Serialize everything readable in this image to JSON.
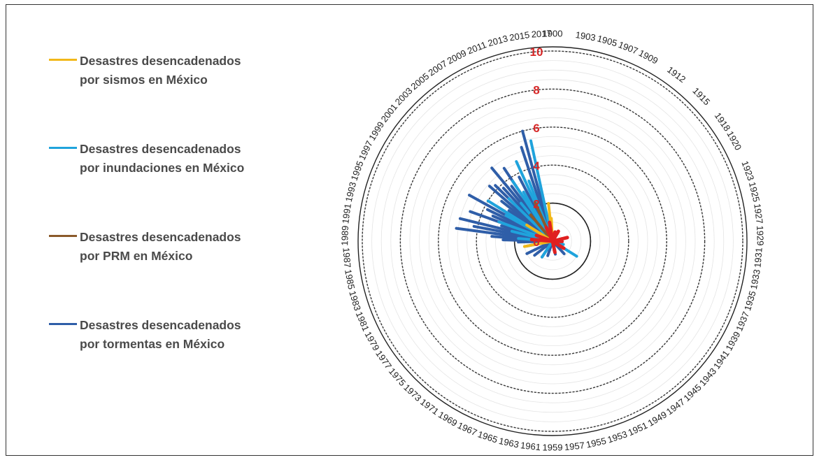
{
  "colors": {
    "sismos": "#f2b81a",
    "inundaciones": "#1fa3dc",
    "prm": "#8b5a2b",
    "tormentas": "#2f5ea8",
    "center": "#e02020",
    "radial_label": "#d62828"
  },
  "chart_data": {
    "type": "radial-bar",
    "title": "",
    "legend_placement": "left",
    "r_ticks": [
      0,
      2,
      4,
      6,
      8,
      10
    ],
    "r_range": [
      0,
      10
    ],
    "dashed_major_circles": [
      2,
      4,
      6,
      8,
      10
    ],
    "years": [
      "1900",
      "1903",
      "1905",
      "1907",
      "1909",
      "1912",
      "1915",
      "1918",
      "1920",
      "1923",
      "1925",
      "1927",
      "1929",
      "1931",
      "1933",
      "1935",
      "1937",
      "1939",
      "1941",
      "1943",
      "1945",
      "1947",
      "1949",
      "1951",
      "1953",
      "1955",
      "1957",
      "1959",
      "1961",
      "1963",
      "1965",
      "1967",
      "1969",
      "1971",
      "1973",
      "1975",
      "1977",
      "1979",
      "1981",
      "1983",
      "1985",
      "1987",
      "1989",
      "1991",
      "1993",
      "1995",
      "1997",
      "1999",
      "2001",
      "2003",
      "2005",
      "2007",
      "2009",
      "2011",
      "2013",
      "2015",
      "2017"
    ],
    "series": [
      {
        "name": "Desastres desencadenados por sismos en México",
        "color_key": "sismos",
        "points": [
          [
            "2017",
            1.2
          ],
          [
            "2016",
            2.0
          ],
          [
            "1999",
            1.6
          ],
          [
            "1985",
            1.5
          ],
          [
            "1900",
            0.4
          ]
        ]
      },
      {
        "name": "Desastres desencadenados por inundaciones en México",
        "color_key": "inundaciones",
        "points": [
          [
            "2014",
            5.4
          ],
          [
            "2011",
            3.4
          ],
          [
            "2010",
            4.6
          ],
          [
            "2008",
            3.0
          ],
          [
            "2007",
            3.8
          ],
          [
            "2005",
            2.6
          ],
          [
            "2003",
            3.2
          ],
          [
            "1999",
            4.0
          ],
          [
            "1998",
            2.8
          ],
          [
            "1995",
            3.0
          ],
          [
            "1993",
            2.2
          ],
          [
            "1990",
            1.8
          ],
          [
            "1970",
            1.0
          ],
          [
            "1940",
            1.5
          ],
          [
            "1935",
            0.6
          ]
        ]
      },
      {
        "name": "Desastres desencadenados por PRM en México",
        "color_key": "prm",
        "points": [
          [
            "2010",
            2.2
          ],
          [
            "2005",
            1.8
          ],
          [
            "1999",
            1.2
          ]
        ]
      },
      {
        "name": "Desastres desencadenados por tormentas en México",
        "color_key": "tormentas",
        "points": [
          [
            "2013",
            6.0
          ],
          [
            "2012",
            5.2
          ],
          [
            "2009",
            3.8
          ],
          [
            "2007",
            4.6
          ],
          [
            "2006",
            3.6
          ],
          [
            "2005",
            5.0
          ],
          [
            "2004",
            3.8
          ],
          [
            "2003",
            4.2
          ],
          [
            "2002",
            4.4
          ],
          [
            "2001",
            3.4
          ],
          [
            "2000",
            2.8
          ],
          [
            "1999",
            3.4
          ],
          [
            "1998",
            5.0
          ],
          [
            "1997",
            3.8
          ],
          [
            "1996",
            3.4
          ],
          [
            "1995",
            4.6
          ],
          [
            "1994",
            2.8
          ],
          [
            "1993",
            5.0
          ],
          [
            "1992",
            4.2
          ],
          [
            "1991",
            5.1
          ],
          [
            "1990",
            3.2
          ],
          [
            "1989",
            2.6
          ],
          [
            "1988",
            1.8
          ],
          [
            "1985",
            1.4
          ],
          [
            "1980",
            1.5
          ],
          [
            "1976",
            1.2
          ],
          [
            "1970",
            1.0
          ],
          [
            "1965",
            0.8
          ],
          [
            "1955",
            0.7
          ],
          [
            "1945",
            0.9
          ],
          [
            "1935",
            0.5
          ]
        ]
      }
    ]
  }
}
